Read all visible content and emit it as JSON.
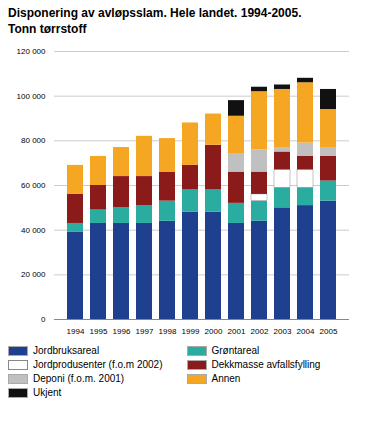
{
  "chart_data": {
    "type": "bar",
    "stacked": true,
    "title": "Disponering av avløpsslam. Hele landet. 1994-2005.\nTonn tørrstoff",
    "categories": [
      "1994",
      "1995",
      "1996",
      "1997",
      "1998",
      "1999",
      "2000",
      "2001",
      "2002",
      "2003",
      "2004",
      "2005"
    ],
    "series": [
      {
        "name": "Jordbruksareal",
        "color": "#1f3f8f",
        "values": [
          39000,
          43000,
          43000,
          43000,
          44000,
          48000,
          48000,
          43000,
          44000,
          50000,
          51000,
          53000
        ]
      },
      {
        "name": "Grøntareal",
        "color": "#2aada0",
        "values": [
          4000,
          6000,
          7000,
          8000,
          9000,
          10000,
          10000,
          9000,
          9000,
          9000,
          8000,
          9000
        ]
      },
      {
        "name": "Jordprodusenter (f.o.m 2002)",
        "color": "#ffffff",
        "values": [
          0,
          0,
          0,
          0,
          0,
          0,
          0,
          0,
          3000,
          8000,
          8000,
          0
        ]
      },
      {
        "name": "Dekkmasse avfallsfylling",
        "color": "#8b1a1a",
        "values": [
          13000,
          11000,
          14000,
          13000,
          13000,
          11000,
          20000,
          14000,
          10000,
          8000,
          6000,
          11000
        ]
      },
      {
        "name": "Deponi (f.o.m. 2001)",
        "color": "#c0c0c0",
        "values": [
          0,
          0,
          0,
          0,
          0,
          0,
          0,
          8000,
          10000,
          2000,
          6000,
          4000
        ]
      },
      {
        "name": "Annen",
        "color": "#f5a623",
        "values": [
          13000,
          13000,
          13000,
          18000,
          15000,
          19000,
          14000,
          17000,
          26000,
          26000,
          27000,
          17000
        ]
      },
      {
        "name": "Ukjent",
        "color": "#111111",
        "values": [
          0,
          0,
          0,
          0,
          0,
          0,
          0,
          7000,
          2000,
          2000,
          2000,
          9000
        ]
      }
    ],
    "ylim": [
      0,
      120000
    ],
    "yticks": [
      0,
      {
        "value": 20000,
        "label": "20 000"
      },
      {
        "value": 40000,
        "label": "40 000"
      },
      {
        "value": 60000,
        "label": "60 000"
      },
      {
        "value": 80000,
        "label": "80 000"
      },
      {
        "value": 100000,
        "label": "100 000"
      },
      {
        "value": 120000,
        "label": "120 000"
      }
    ],
    "grid": true,
    "legend": "bottom"
  }
}
